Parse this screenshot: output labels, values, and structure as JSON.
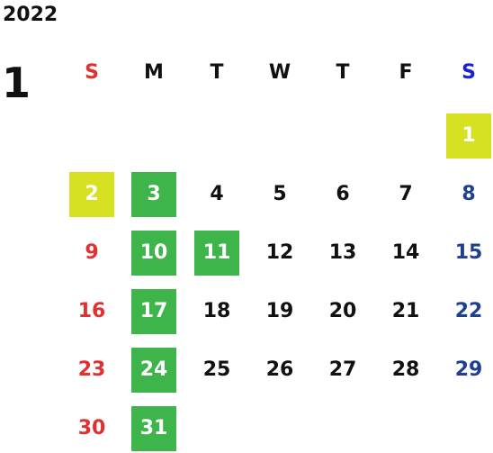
{
  "calendar": {
    "year": "2022",
    "month": "1",
    "weekdays": [
      "S",
      "M",
      "T",
      "W",
      "T",
      "F",
      "S"
    ],
    "days": {
      "d1": "1",
      "d2": "2",
      "d3": "3",
      "d4": "4",
      "d5": "5",
      "d6": "6",
      "d7": "7",
      "d8": "8",
      "d9": "9",
      "d10": "10",
      "d11": "11",
      "d12": "12",
      "d13": "13",
      "d14": "14",
      "d15": "15",
      "d16": "16",
      "d17": "17",
      "d18": "18",
      "d19": "19",
      "d20": "20",
      "d21": "21",
      "d22": "22",
      "d23": "23",
      "d24": "24",
      "d25": "25",
      "d26": "26",
      "d27": "27",
      "d28": "28",
      "d29": "29",
      "d30": "30",
      "d31": "31"
    },
    "colors": {
      "sunday": "#e03030",
      "saturday": "#1f3f8f",
      "holiday_highlight": "#d6e221",
      "closed_highlight": "#3db54a"
    }
  }
}
